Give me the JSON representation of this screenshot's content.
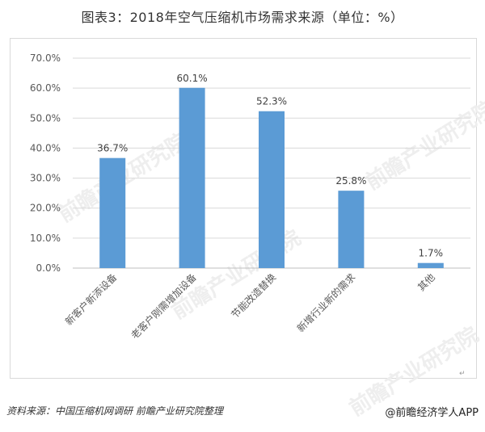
{
  "header": {
    "title": "图表3：2018年空气压缩机市场需求来源（单位：%）"
  },
  "chart_data": {
    "type": "bar",
    "title": "图表3：2018年空气压缩机市场需求来源（单位：%）",
    "categories": [
      "新客户新添设备",
      "老客户刚需增加设备",
      "节能改造替换",
      "新增行业新的需求",
      "其他"
    ],
    "values": [
      36.7,
      60.1,
      52.3,
      25.8,
      1.7
    ],
    "value_labels": [
      "36.7%",
      "60.1%",
      "52.3%",
      "25.8%",
      "1.7%"
    ],
    "yticks": [
      "0.0%",
      "10.0%",
      "20.0%",
      "30.0%",
      "40.0%",
      "50.0%",
      "60.0%",
      "70.0%"
    ],
    "ylim": [
      0,
      70
    ],
    "grid": true,
    "bar_color": "#5b9bd5",
    "xlabel": "",
    "ylabel": ""
  },
  "footer": {
    "source": "资料来源：中国压缩机网调研 前瞻产业研究院整理",
    "brand": "@前瞻经济学人APP"
  },
  "watermark": {
    "text": "前瞻产业研究院"
  }
}
